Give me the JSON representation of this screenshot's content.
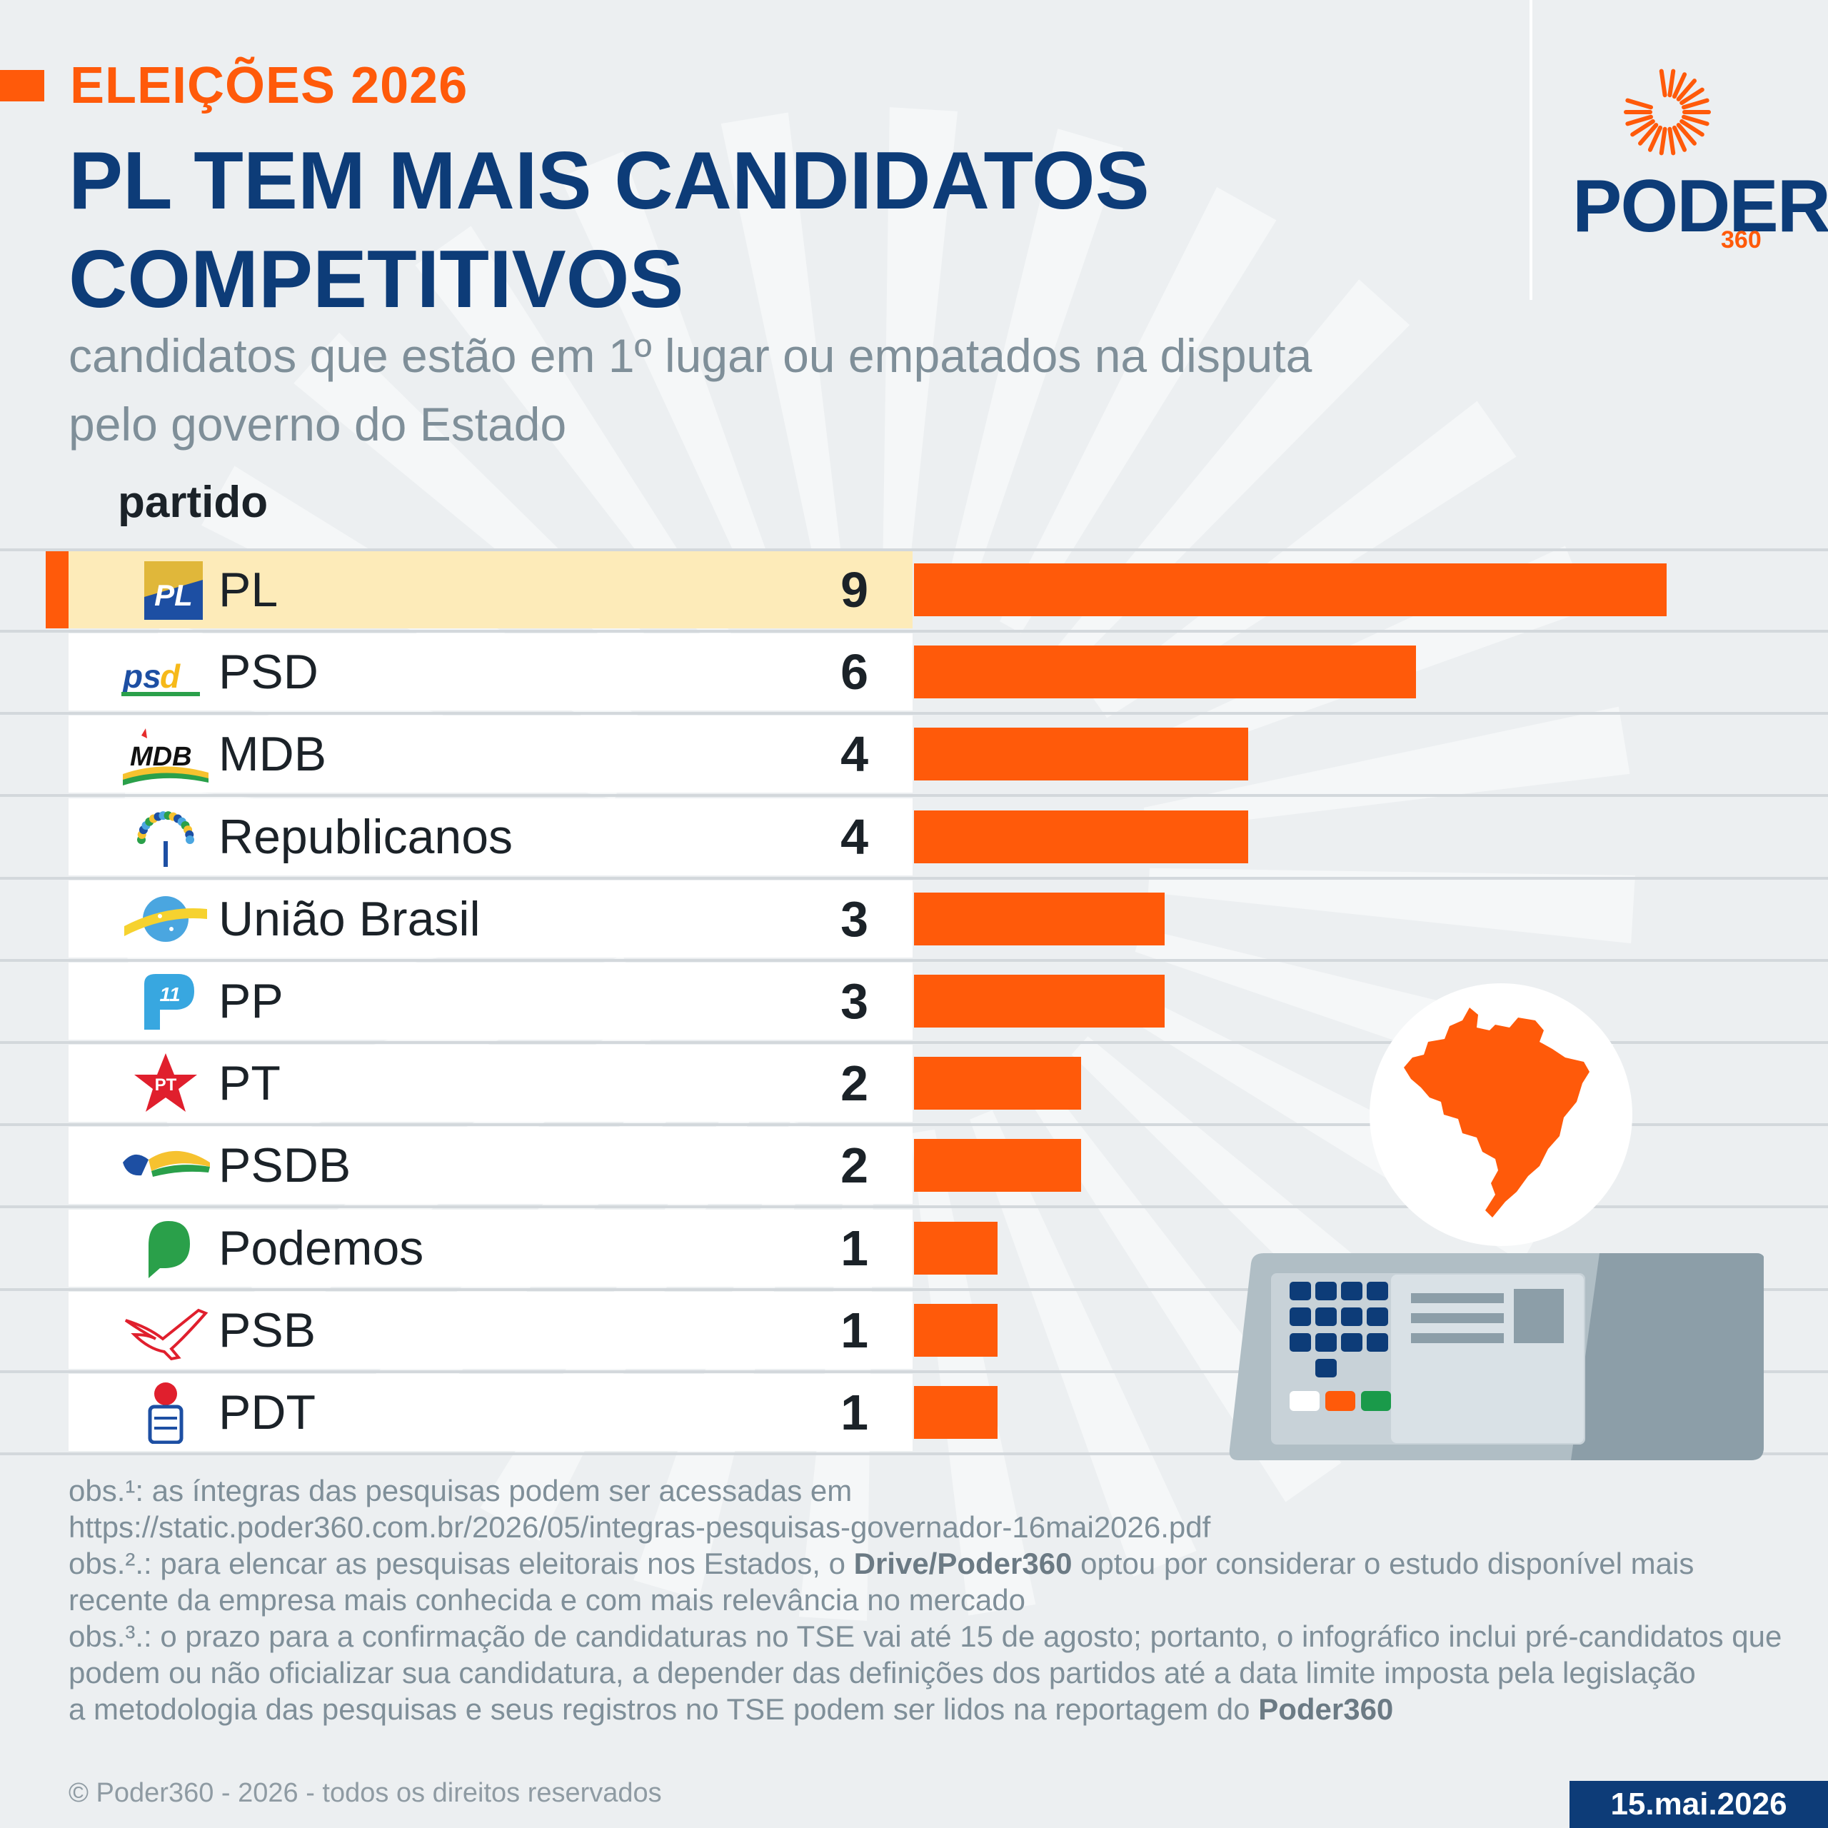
{
  "header": {
    "tag": "ELEIÇÕES 2026",
    "title": "PL TEM MAIS CANDIDATOS COMPETITIVOS",
    "subtitle": "candidatos que estão em 1º lugar ou empatados na disputa pelo governo do Estado"
  },
  "logo": {
    "word": "PODER",
    "number": "360"
  },
  "chart_data": {
    "type": "bar",
    "orientation": "horizontal",
    "column_header": "partido",
    "categories": [
      "PL",
      "PSD",
      "MDB",
      "Republicanos",
      "União Brasil",
      "PP",
      "PT",
      "PSDB",
      "Podemos",
      "PSB",
      "PDT"
    ],
    "values": [
      9,
      6,
      4,
      4,
      3,
      3,
      2,
      2,
      1,
      1,
      1
    ],
    "highlighted": "PL",
    "bar_color": "#ff5a0a",
    "highlight_row_color": "#fdebb9",
    "xlim": [
      0,
      9
    ]
  },
  "notes": {
    "obs1_label": "obs.¹:",
    "obs1_text": " as íntegras das pesquisas podem ser acessadas em",
    "obs1_url": "https://static.poder360.com.br/2026/05/integras-pesquisas-governador-16mai2026.pdf",
    "obs2_label": "obs.².:",
    "obs2_text_a": " para elencar as pesquisas eleitorais nos Estados, o ",
    "obs2_bold": "Drive/Poder360",
    "obs2_text_b": " optou por considerar o estudo disponível mais recente da empresa mais conhecida e com mais relevância no mercado",
    "obs3_label": "obs.³.:",
    "obs3_text": " o prazo para a confirmação de candidaturas no TSE vai até 15 de agosto; portanto, o infográfico inclui pré-candidatos que podem ou não oficializar sua candidatura, a depender das definições dos partidos até a data limite imposta pela legislação",
    "method_text": "a metodologia das pesquisas e seus registros no TSE podem ser lidos na reportagem do ",
    "method_bold": "Poder360"
  },
  "footer": {
    "copyright": "© Poder360 - 2026 - todos os direitos reservados",
    "date": "15.mai.2026"
  },
  "colors": {
    "navy": "#0d3c78",
    "orange": "#ff5a0a",
    "background": "#eceff1",
    "subtitle_gray": "#7f8f99"
  },
  "icons": [
    "pl-logo-icon",
    "psd-logo-icon",
    "mdb-logo-icon",
    "republicanos-logo-icon",
    "uniao-brasil-logo-icon",
    "pp-logo-icon",
    "pt-logo-icon",
    "psdb-logo-icon",
    "podemos-logo-icon",
    "psb-logo-icon",
    "pdt-logo-icon",
    "brazil-map-icon",
    "voting-machine-icon",
    "poder360-sun-icon"
  ]
}
